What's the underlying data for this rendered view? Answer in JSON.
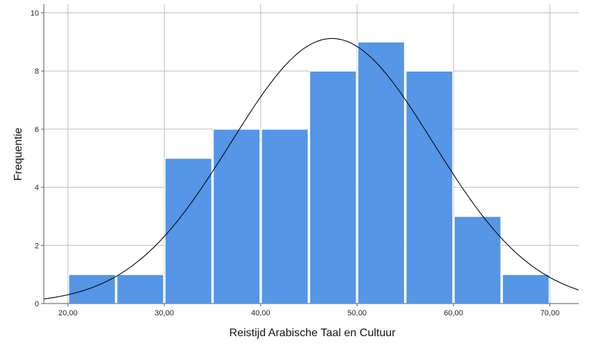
{
  "chart_data": {
    "type": "bar",
    "subtype": "histogram",
    "xlabel": "Reistijd Arabische Taal en Cultuur",
    "ylabel": "Frequentie",
    "bins": [
      {
        "start": 20,
        "end": 25,
        "count": 1
      },
      {
        "start": 25,
        "end": 30,
        "count": 1
      },
      {
        "start": 30,
        "end": 35,
        "count": 5
      },
      {
        "start": 35,
        "end": 40,
        "count": 6
      },
      {
        "start": 40,
        "end": 45,
        "count": 6
      },
      {
        "start": 45,
        "end": 50,
        "count": 8
      },
      {
        "start": 50,
        "end": 55,
        "count": 9
      },
      {
        "start": 55,
        "end": 60,
        "count": 8
      },
      {
        "start": 60,
        "end": 65,
        "count": 3
      },
      {
        "start": 65,
        "end": 70,
        "count": 1
      }
    ],
    "x_ticks": [
      {
        "value": 20,
        "label": "20,00"
      },
      {
        "value": 30,
        "label": "30,00"
      },
      {
        "value": 40,
        "label": "40,00"
      },
      {
        "value": 50,
        "label": "50,00"
      },
      {
        "value": 60,
        "label": "60,00"
      },
      {
        "value": 70,
        "label": "70,00"
      }
    ],
    "y_ticks": [
      {
        "value": 0,
        "label": "0"
      },
      {
        "value": 2,
        "label": "2"
      },
      {
        "value": 4,
        "label": "4"
      },
      {
        "value": 6,
        "label": "6"
      },
      {
        "value": 8,
        "label": "8"
      },
      {
        "value": 10,
        "label": "10"
      }
    ],
    "xlim": [
      17.5,
      73.0
    ],
    "ylim": [
      0,
      10.3
    ],
    "grid": true,
    "normal_curve": {
      "mean": 47.4,
      "sd": 10.5,
      "n": 48,
      "bin_width": 5
    },
    "colors": {
      "bar": "#5596e6",
      "bar_edge": "#ffffff",
      "grid": "#bdbdbd",
      "curve": "#000000",
      "axis": "#555555"
    }
  }
}
